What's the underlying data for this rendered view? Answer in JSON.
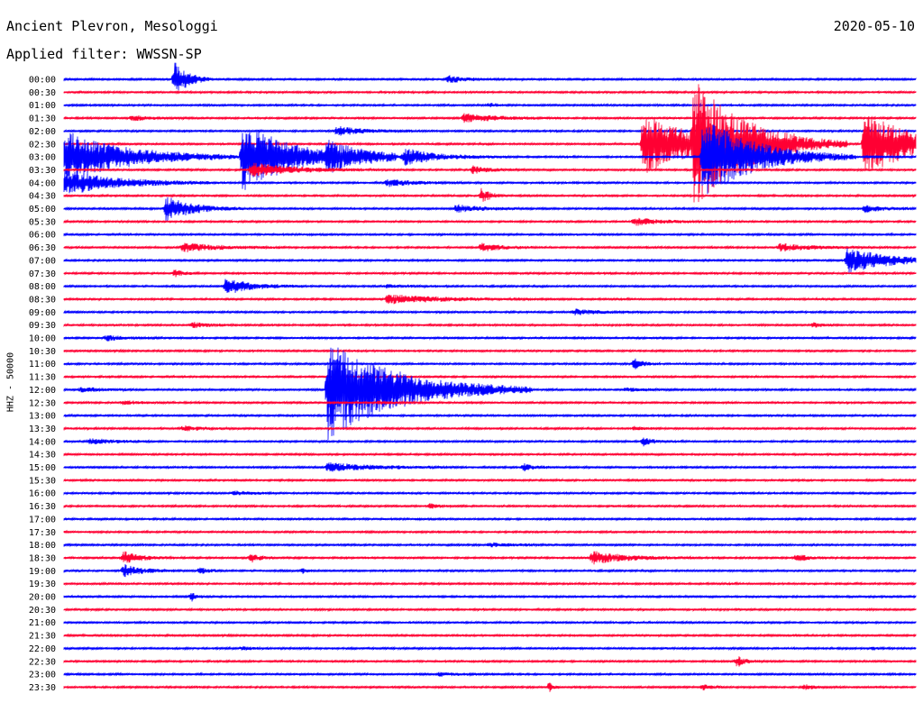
{
  "header": {
    "station": "Ancient Plevron, Mesologgi",
    "date": "2020-05-10",
    "filter": "Applied filter: WWSSN-SP"
  },
  "chart_data": {
    "type": "helicorder",
    "ylabel": "HHZ - 50000",
    "colors": {
      "blue": "#0000ff",
      "red": "#ff0033"
    },
    "rows": [
      {
        "label": "00:00",
        "color": "blue",
        "events": [
          {
            "x": 0.13,
            "a": 20,
            "d": 0.015
          },
          {
            "x": 0.45,
            "a": 4,
            "d": 0.02
          }
        ]
      },
      {
        "label": "00:30",
        "color": "red",
        "events": []
      },
      {
        "label": "01:00",
        "color": "blue",
        "events": [
          {
            "x": 0.5,
            "a": 2,
            "d": 0.01
          }
        ]
      },
      {
        "label": "01:30",
        "color": "red",
        "events": [
          {
            "x": 0.08,
            "a": 3,
            "d": 0.02
          },
          {
            "x": 0.47,
            "a": 5,
            "d": 0.04
          }
        ]
      },
      {
        "label": "02:00",
        "color": "blue",
        "events": [
          {
            "x": 0.32,
            "a": 5,
            "d": 0.03
          }
        ]
      },
      {
        "label": "02:30",
        "color": "red",
        "events": [
          {
            "x": 0.68,
            "a": 35,
            "d": 0.06
          },
          {
            "x": 0.74,
            "a": 60,
            "d": 0.06
          },
          {
            "x": 0.94,
            "a": 35,
            "d": 0.06
          }
        ]
      },
      {
        "label": "03:00",
        "color": "blue",
        "events": [
          {
            "x": 0.0,
            "a": 30,
            "d": 0.07
          },
          {
            "x": 0.21,
            "a": 38,
            "d": 0.06
          },
          {
            "x": 0.31,
            "a": 12,
            "d": 0.04
          },
          {
            "x": 0.4,
            "a": 8,
            "d": 0.04
          },
          {
            "x": 0.75,
            "a": 45,
            "d": 0.06
          }
        ]
      },
      {
        "label": "03:30",
        "color": "red",
        "events": [
          {
            "x": 0.22,
            "a": 8,
            "d": 0.05
          },
          {
            "x": 0.48,
            "a": 4,
            "d": 0.02
          }
        ]
      },
      {
        "label": "04:00",
        "color": "blue",
        "events": [
          {
            "x": 0.0,
            "a": 14,
            "d": 0.06
          },
          {
            "x": 0.38,
            "a": 4,
            "d": 0.03
          }
        ]
      },
      {
        "label": "04:30",
        "color": "red",
        "events": [
          {
            "x": 0.49,
            "a": 8,
            "d": 0.01
          }
        ]
      },
      {
        "label": "05:00",
        "color": "blue",
        "events": [
          {
            "x": 0.12,
            "a": 14,
            "d": 0.03
          },
          {
            "x": 0.46,
            "a": 4,
            "d": 0.03
          },
          {
            "x": 0.94,
            "a": 4,
            "d": 0.02
          }
        ]
      },
      {
        "label": "05:30",
        "color": "red",
        "events": [
          {
            "x": 0.67,
            "a": 4,
            "d": 0.03
          }
        ]
      },
      {
        "label": "06:00",
        "color": "blue",
        "events": []
      },
      {
        "label": "06:30",
        "color": "red",
        "events": [
          {
            "x": 0.14,
            "a": 5,
            "d": 0.04
          },
          {
            "x": 0.49,
            "a": 5,
            "d": 0.02
          },
          {
            "x": 0.84,
            "a": 4,
            "d": 0.04
          }
        ]
      },
      {
        "label": "07:00",
        "color": "blue",
        "events": [
          {
            "x": 0.92,
            "a": 14,
            "d": 0.05
          }
        ]
      },
      {
        "label": "07:30",
        "color": "red",
        "events": [
          {
            "x": 0.13,
            "a": 4,
            "d": 0.01
          }
        ]
      },
      {
        "label": "08:00",
        "color": "blue",
        "events": [
          {
            "x": 0.19,
            "a": 9,
            "d": 0.03
          },
          {
            "x": 0.38,
            "a": 2,
            "d": 0.02
          }
        ]
      },
      {
        "label": "08:30",
        "color": "red",
        "events": [
          {
            "x": 0.38,
            "a": 5,
            "d": 0.06
          }
        ]
      },
      {
        "label": "09:00",
        "color": "blue",
        "events": [
          {
            "x": 0.6,
            "a": 3,
            "d": 0.03
          }
        ]
      },
      {
        "label": "09:30",
        "color": "red",
        "events": [
          {
            "x": 0.15,
            "a": 3,
            "d": 0.02
          },
          {
            "x": 0.88,
            "a": 3,
            "d": 0.01
          }
        ]
      },
      {
        "label": "10:00",
        "color": "blue",
        "events": [
          {
            "x": 0.05,
            "a": 3,
            "d": 0.02
          }
        ]
      },
      {
        "label": "10:30",
        "color": "red",
        "events": []
      },
      {
        "label": "11:00",
        "color": "blue",
        "events": [
          {
            "x": 0.67,
            "a": 6,
            "d": 0.01
          }
        ]
      },
      {
        "label": "11:30",
        "color": "red",
        "events": []
      },
      {
        "label": "12:00",
        "color": "blue",
        "events": [
          {
            "x": 0.02,
            "a": 3,
            "d": 0.02
          },
          {
            "x": 0.31,
            "a": 55,
            "d": 0.08
          },
          {
            "x": 0.66,
            "a": 2,
            "d": 0.02
          }
        ]
      },
      {
        "label": "12:30",
        "color": "red",
        "events": [
          {
            "x": 0.07,
            "a": 2,
            "d": 0.02
          },
          {
            "x": 0.37,
            "a": 2,
            "d": 0.01
          }
        ]
      },
      {
        "label": "13:00",
        "color": "blue",
        "events": []
      },
      {
        "label": "13:30",
        "color": "red",
        "events": [
          {
            "x": 0.14,
            "a": 3,
            "d": 0.02
          },
          {
            "x": 0.67,
            "a": 2,
            "d": 0.01
          }
        ]
      },
      {
        "label": "14:00",
        "color": "blue",
        "events": [
          {
            "x": 0.03,
            "a": 3,
            "d": 0.03
          },
          {
            "x": 0.68,
            "a": 5,
            "d": 0.01
          }
        ]
      },
      {
        "label": "14:30",
        "color": "red",
        "events": []
      },
      {
        "label": "15:00",
        "color": "blue",
        "events": [
          {
            "x": 0.31,
            "a": 5,
            "d": 0.05
          },
          {
            "x": 0.54,
            "a": 4,
            "d": 0.01
          }
        ]
      },
      {
        "label": "15:30",
        "color": "red",
        "events": []
      },
      {
        "label": "16:00",
        "color": "blue",
        "events": [
          {
            "x": 0.2,
            "a": 2,
            "d": 0.02
          }
        ]
      },
      {
        "label": "16:30",
        "color": "red",
        "events": [
          {
            "x": 0.43,
            "a": 3,
            "d": 0.01
          }
        ]
      },
      {
        "label": "17:00",
        "color": "blue",
        "events": []
      },
      {
        "label": "17:30",
        "color": "red",
        "events": []
      },
      {
        "label": "18:00",
        "color": "blue",
        "events": [
          {
            "x": 0.5,
            "a": 2,
            "d": 0.03
          }
        ]
      },
      {
        "label": "18:30",
        "color": "red",
        "events": [
          {
            "x": 0.07,
            "a": 7,
            "d": 0.02
          },
          {
            "x": 0.22,
            "a": 5,
            "d": 0.01
          },
          {
            "x": 0.62,
            "a": 7,
            "d": 0.04
          },
          {
            "x": 0.86,
            "a": 6,
            "d": 0.01
          }
        ]
      },
      {
        "label": "19:00",
        "color": "blue",
        "events": [
          {
            "x": 0.07,
            "a": 7,
            "d": 0.02
          },
          {
            "x": 0.16,
            "a": 4,
            "d": 0.01
          },
          {
            "x": 0.28,
            "a": 3,
            "d": 0.005
          }
        ]
      },
      {
        "label": "19:30",
        "color": "red",
        "events": []
      },
      {
        "label": "20:00",
        "color": "blue",
        "events": [
          {
            "x": 0.15,
            "a": 5,
            "d": 0.005
          }
        ]
      },
      {
        "label": "20:30",
        "color": "red",
        "events": []
      },
      {
        "label": "21:00",
        "color": "blue",
        "events": []
      },
      {
        "label": "21:30",
        "color": "red",
        "events": []
      },
      {
        "label": "22:00",
        "color": "blue",
        "events": [
          {
            "x": 0.21,
            "a": 2,
            "d": 0.01
          },
          {
            "x": 0.95,
            "a": 2,
            "d": 0.005
          }
        ]
      },
      {
        "label": "22:30",
        "color": "red",
        "events": [
          {
            "x": 0.79,
            "a": 6,
            "d": 0.01
          }
        ]
      },
      {
        "label": "23:00",
        "color": "blue",
        "events": [
          {
            "x": 0.44,
            "a": 2,
            "d": 0.02
          }
        ]
      },
      {
        "label": "23:30",
        "color": "red",
        "events": [
          {
            "x": 0.57,
            "a": 5,
            "d": 0.005
          },
          {
            "x": 0.75,
            "a": 3,
            "d": 0.01
          },
          {
            "x": 0.87,
            "a": 3,
            "d": 0.01
          }
        ]
      }
    ]
  }
}
